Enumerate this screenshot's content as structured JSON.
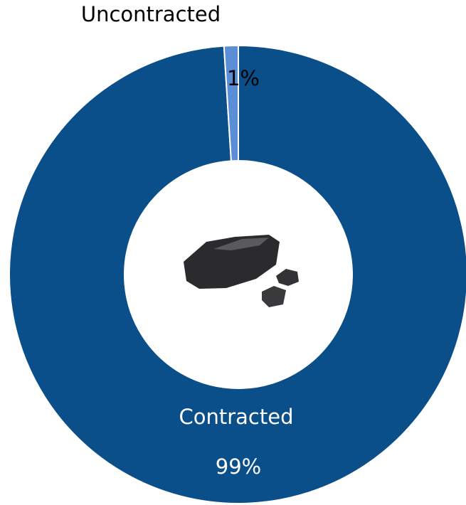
{
  "chart_data": {
    "type": "donut",
    "categories": [
      "Contracted",
      "Uncontracted"
    ],
    "values": [
      99,
      1
    ],
    "value_labels": [
      "99%",
      "1%"
    ],
    "colors": [
      "#0b4f8a",
      "#5b8ed6"
    ]
  }
}
